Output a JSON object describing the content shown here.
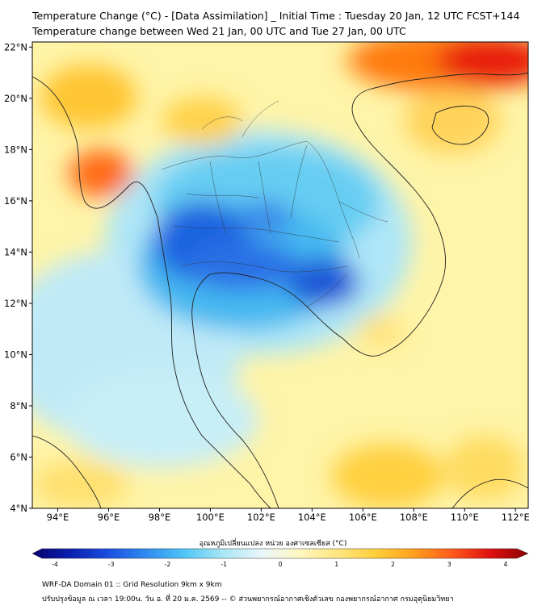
{
  "title_line1": "Temperature Change (°C) - [Data Assimilation] _ Initial Time : Tuesday 20 Jan, 12 UTC FCST+144",
  "title_line2": "Temperature change between Wed 21 Jan, 00 UTC and Tue 27 Jan, 00 UTC",
  "map": {
    "lon_ticks": [
      "94°E",
      "96°E",
      "98°E",
      "100°E",
      "102°E",
      "104°E",
      "106°E",
      "108°E",
      "110°E",
      "112°E"
    ],
    "lat_ticks": [
      "4°N",
      "6°N",
      "8°N",
      "10°N",
      "12°N",
      "14°N",
      "16°N",
      "18°N",
      "20°N",
      "22°N"
    ],
    "extent": {
      "lon_min": 93,
      "lon_max": 112.5,
      "lat_min": 4,
      "lat_max": 22.2
    }
  },
  "colorbar": {
    "title": "อุณหภูมิเปลี่ยนแปลง หน่วย องศาเซลเซียส (°C)",
    "ticks": [
      "-4",
      "-3",
      "-2",
      "-1",
      "0",
      "1",
      "2",
      "3",
      "4"
    ],
    "min": -4,
    "max": 4,
    "colors": [
      "#08006e",
      "#0a1fb0",
      "#1b4fe0",
      "#2f8cf0",
      "#4fc6f5",
      "#a9e6f5",
      "#e8f6fa",
      "#fff7c0",
      "#ffe680",
      "#ffcf3a",
      "#ff9f1c",
      "#ff5a1a",
      "#e01010",
      "#8a0000"
    ]
  },
  "footer_line1": "WRF-DA Domain 01 :: Grid Resolution 9km x 9km",
  "footer_line2": "ปรับปรุงข้อมูล ณ เวลา 19:00น. วัน อ. ที่ 20 ม.ค. 2569 -- © ส่วนพยากรณ์อากาศเชิงตัวเลข กองพยากรณ์อากาศ กรมอุตุนิยมวิทยา"
}
